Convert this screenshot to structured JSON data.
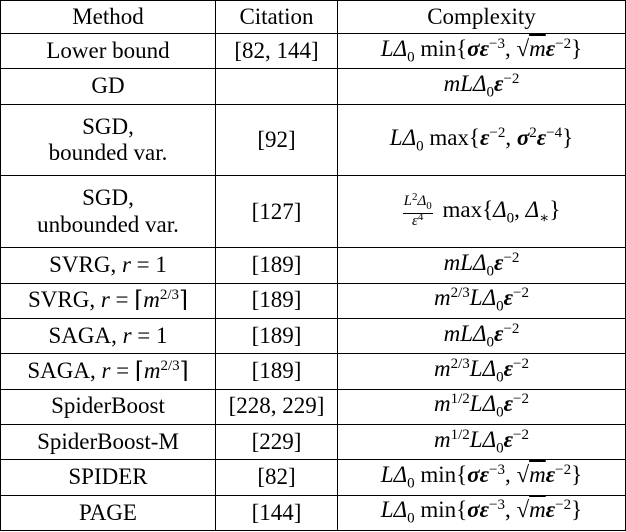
{
  "headers": [
    "Method",
    "Citation",
    "Complexity"
  ],
  "rows": [
    {
      "method": "Lower bound",
      "citation": "[82, 144]",
      "complexity": "LΔ0 min{σε^-3, √m ε^-2}"
    },
    {
      "method": "GD",
      "citation": "",
      "complexity": "mLΔ0 ε^-2"
    },
    {
      "method": "SGD, bounded var.",
      "citation": "[92]",
      "complexity": "LΔ0 max{ε^-2, σ^2 ε^-4}"
    },
    {
      "method": "SGD, unbounded var.",
      "citation": "[127]",
      "complexity": "(L^2 Δ0 / ε^4) max{Δ0, Δ*}"
    },
    {
      "method": "SVRG, r = 1",
      "citation": "[189]",
      "complexity": "mLΔ0 ε^-2"
    },
    {
      "method": "SVRG, r = ⌈m^2/3⌉",
      "citation": "[189]",
      "complexity": "m^2/3 LΔ0 ε^-2"
    },
    {
      "method": "SAGA, r = 1",
      "citation": "[189]",
      "complexity": "mLΔ0 ε^-2"
    },
    {
      "method": "SAGA, r = ⌈m^2/3⌉",
      "citation": "[189]",
      "complexity": "m^2/3 LΔ0 ε^-2"
    },
    {
      "method": "SpiderBoost",
      "citation": "[228, 229]",
      "complexity": "m^1/2 LΔ0 ε^-2"
    },
    {
      "method": "SpiderBoost-M",
      "citation": "[229]",
      "complexity": "m^1/2 LΔ0 ε^-2"
    },
    {
      "method": "SPIDER",
      "citation": "[82]",
      "complexity": "LΔ0 min{σε^-3, √m ε^-2}"
    },
    {
      "method": "PAGE",
      "citation": "[144]",
      "complexity": "LΔ0 min{σε^-3, √m ε^-2}"
    }
  ]
}
